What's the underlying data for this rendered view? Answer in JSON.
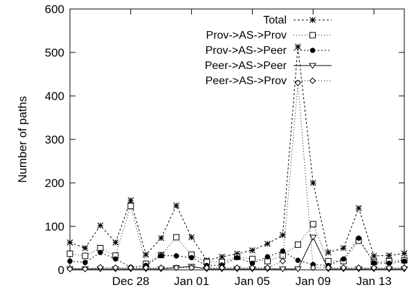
{
  "chart_data": {
    "type": "line",
    "title": "",
    "xlabel": "",
    "ylabel": "Number of paths",
    "x_tick_labels": [
      "Dec 28",
      "Jan 01",
      "Jan 05",
      "Jan 09",
      "Jan 13"
    ],
    "x_tick_values": [
      4,
      8,
      12,
      16,
      20
    ],
    "xlim": [
      0,
      22
    ],
    "ylim": [
      0,
      600
    ],
    "y_ticks": [
      0,
      100,
      200,
      300,
      400,
      500,
      600
    ],
    "grid": false,
    "legend_position": "top-right",
    "x": [
      0,
      1,
      2,
      3,
      4,
      5,
      6,
      7,
      8,
      9,
      10,
      11,
      12,
      13,
      14,
      15,
      16,
      17,
      18,
      19,
      20,
      21,
      22
    ],
    "series": [
      {
        "name": "Total",
        "marker": "asterisk",
        "dash": "3,3",
        "values": [
          63,
          50,
          102,
          63,
          160,
          35,
          73,
          148,
          75,
          22,
          30,
          37,
          45,
          60,
          80,
          513,
          200,
          40,
          50,
          142,
          32,
          33,
          38
        ]
      },
      {
        "name": "Prov->AS->Prov",
        "marker": "square",
        "dash": "1,3",
        "values": [
          37,
          32,
          50,
          33,
          147,
          14,
          34,
          75,
          35,
          18,
          18,
          30,
          25,
          20,
          33,
          58,
          105,
          20,
          20,
          67,
          18,
          20,
          22
        ]
      },
      {
        "name": "Prov->AS->Peer",
        "marker": "circle",
        "dash": "2,3",
        "values": [
          20,
          17,
          40,
          25,
          6,
          10,
          33,
          32,
          28,
          10,
          11,
          28,
          15,
          30,
          43,
          22,
          12,
          10,
          25,
          73,
          16,
          15,
          20
        ]
      },
      {
        "name": "Peer->AS->Peer",
        "marker": "triangle",
        "dash": "",
        "values": [
          2,
          2,
          2,
          2,
          2,
          2,
          2,
          5,
          8,
          2,
          2,
          2,
          2,
          2,
          2,
          2,
          75,
          2,
          2,
          2,
          2,
          2,
          2
        ]
      },
      {
        "name": "Peer->AS->Prov",
        "marker": "diamond",
        "dash": "1,3",
        "values": [
          2,
          2,
          6,
          5,
          5,
          5,
          5,
          5,
          5,
          5,
          5,
          5,
          5,
          5,
          20,
          430,
          5,
          5,
          5,
          5,
          5,
          5,
          5
        ]
      }
    ]
  }
}
